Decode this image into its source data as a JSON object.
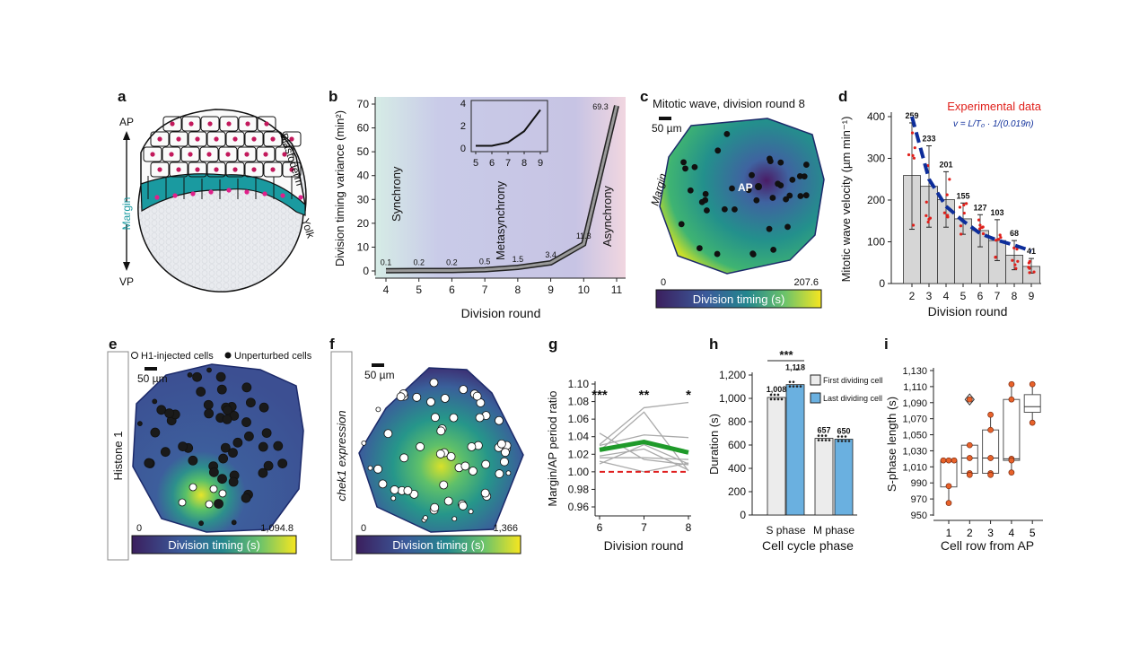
{
  "panel_labels": [
    "a",
    "b",
    "c",
    "d",
    "e",
    "f",
    "g",
    "h",
    "i"
  ],
  "panel_a": {
    "ap": "AP",
    "vp": "VP",
    "margin": "Margin",
    "blastoderm": "Blastoderm",
    "yolk": "Yolk",
    "margin_color": "#1a9aa0",
    "nucleus_color": "#c2185b"
  },
  "panel_c": {
    "title": "Mitotic wave, division round 8",
    "scale": "50 µm",
    "margin": "Margin",
    "ap": "AP",
    "cbar_min": "0",
    "cbar_max": "207.6",
    "cbar_label": "Division timing (s)"
  },
  "panel_e": {
    "side_label": "Histone 1",
    "legend_open": "H1-injected cells",
    "legend_filled": "Unperturbed cells",
    "scale": "50 µm",
    "cbar_min": "0",
    "cbar_max": "1,094.8",
    "cbar_label": "Division timing (s)"
  },
  "panel_f": {
    "side_label": "chek1 expression",
    "scale": "50 µm",
    "cbar_min": "0",
    "cbar_max": "1,366",
    "cbar_label": "Division timing (s)"
  },
  "colormap": [
    "#3b1f5e",
    "#3b5a9a",
    "#24868e",
    "#35b779",
    "#d8e219",
    "#fde725"
  ],
  "chart_data": [
    {
      "id": "b",
      "type": "line",
      "x": [
        4,
        5,
        6,
        7,
        8,
        9,
        10,
        11
      ],
      "y": [
        0.1,
        0.2,
        0.2,
        0.5,
        1.5,
        3.4,
        11.3,
        69.3
      ],
      "data_labels": [
        "0.1",
        "0.2",
        "0.2",
        "0.5",
        "1.5",
        "3.4",
        "11.3",
        "69.3"
      ],
      "xlabel": "Division round",
      "ylabel": "Division timing variance (min²)",
      "ylim": [
        0,
        70
      ],
      "yticks": [
        0,
        10,
        20,
        30,
        40,
        50,
        60,
        70
      ],
      "xticks": [
        4,
        5,
        6,
        7,
        8,
        9,
        10,
        11
      ],
      "regions": [
        "Synchrony",
        "Metasynchrony",
        "Asynchrony"
      ],
      "inset": {
        "x": [
          5,
          6,
          7,
          8,
          9
        ],
        "y": [
          0.2,
          0.2,
          0.5,
          1.5,
          3.4
        ],
        "ylim": [
          0,
          4
        ],
        "yticks": [
          0,
          2,
          4
        ],
        "xticks": [
          5,
          6,
          7,
          8,
          9
        ]
      }
    },
    {
      "id": "d",
      "type": "bar",
      "categories": [
        2,
        3,
        4,
        5,
        6,
        7,
        8,
        9
      ],
      "values": [
        259,
        233,
        201,
        155,
        127,
        103,
        68,
        41
      ],
      "data_labels": [
        "259",
        "233",
        "201",
        "155",
        "127",
        "103",
        "68",
        "41"
      ],
      "error_low": [
        130,
        135,
        135,
        118,
        88,
        55,
        33,
        25
      ],
      "error_high": [
        385,
        330,
        268,
        193,
        165,
        153,
        103,
        60
      ],
      "fit": {
        "label": "v = L/T₀ · 1/(0.019n)",
        "values": [
          400,
          250,
          185,
          150,
          120,
          104,
          92,
          78
        ],
        "color": "#0d2d9a"
      },
      "legend": "Experimental data",
      "legend_color": "#e0201b",
      "xlabel": "Division round",
      "ylabel": "Mitotic wave velocity (µm min⁻¹)",
      "ylim": [
        0,
        400
      ],
      "yticks": [
        0,
        100,
        200,
        300,
        400
      ]
    },
    {
      "id": "g",
      "type": "line",
      "x": [
        6,
        7,
        8
      ],
      "series": [
        {
          "values": [
            1.025,
            1.034,
            1.022
          ],
          "color": "#1f9a2a"
        }
      ],
      "individual": [
        [
          1.044,
          1.014,
          1.008
        ],
        [
          1.031,
          1.073,
          1.079
        ],
        [
          1.009,
          1.031,
          1.009
        ],
        [
          1.018,
          1.026,
          1.002
        ],
        [
          1.03,
          1.042,
          1.039
        ],
        [
          1.024,
          1.068,
          1.001
        ],
        [
          1.012,
          1.0,
          1.01
        ],
        [
          1.016,
          1.016,
          1.014
        ]
      ],
      "reference": 1.0,
      "significance": [
        "***",
        "**",
        "*"
      ],
      "xlabel": "Division round",
      "ylabel": "Margin/AP period ratio",
      "ylim": [
        0.95,
        1.1
      ],
      "yticks": [
        "0.96",
        "0.98",
        "1.00",
        "1.02",
        "1.04",
        "1.06",
        "1.08",
        "1.10"
      ]
    },
    {
      "id": "h",
      "type": "bar",
      "categories": [
        "S phase",
        "M phase"
      ],
      "series": [
        {
          "name": "First dividing cell",
          "values": [
            1008,
            657
          ],
          "color": "#ececec"
        },
        {
          "name": "Last dividing cell",
          "values": [
            1118,
            650
          ],
          "color": "#6ab0e0"
        }
      ],
      "data_labels": [
        [
          "1,008",
          "657"
        ],
        [
          "1,118",
          "650"
        ]
      ],
      "significance": "***",
      "xlabel": "Cell cycle phase",
      "ylabel": "Duration (s)",
      "ylim": [
        0,
        1200
      ],
      "yticks": [
        "0",
        "200",
        "400",
        "600",
        "800",
        "1,000",
        "1,200"
      ]
    },
    {
      "id": "i",
      "type": "box",
      "categories": [
        1,
        2,
        3,
        4,
        5
      ],
      "boxes": [
        {
          "low": 965,
          "q1": 985,
          "median": 1018,
          "q3": 1018,
          "high": 1018,
          "points": [
            1018,
            1018,
            1018,
            986,
            965
          ]
        },
        {
          "low": 1000,
          "q1": 1002,
          "median": 1021,
          "q3": 1037,
          "high": 1037,
          "points": [
            1037,
            1021,
            1002,
            1000
          ],
          "outliers": [
            1094
          ]
        },
        {
          "low": 1000,
          "q1": 1002,
          "median": 1021,
          "q3": 1056,
          "high": 1075,
          "points": [
            1075,
            1056,
            1021,
            1002,
            1000
          ]
        },
        {
          "low": 1003,
          "q1": 1018,
          "median": 1020,
          "q3": 1094,
          "high": 1113,
          "points": [
            1113,
            1094,
            1020,
            1018,
            1003
          ]
        },
        {
          "low": 1065,
          "q1": 1078,
          "median": 1085,
          "q3": 1100,
          "high": 1113,
          "points": [
            1113,
            1065
          ]
        }
      ],
      "xlabel": "Cell row from AP",
      "ylabel": "S-phase length (s)",
      "ylim": [
        950,
        1130
      ],
      "yticks": [
        "950",
        "970",
        "990",
        "1,010",
        "1,030",
        "1,050",
        "1,070",
        "1,090",
        "1,110",
        "1,130"
      ]
    }
  ]
}
